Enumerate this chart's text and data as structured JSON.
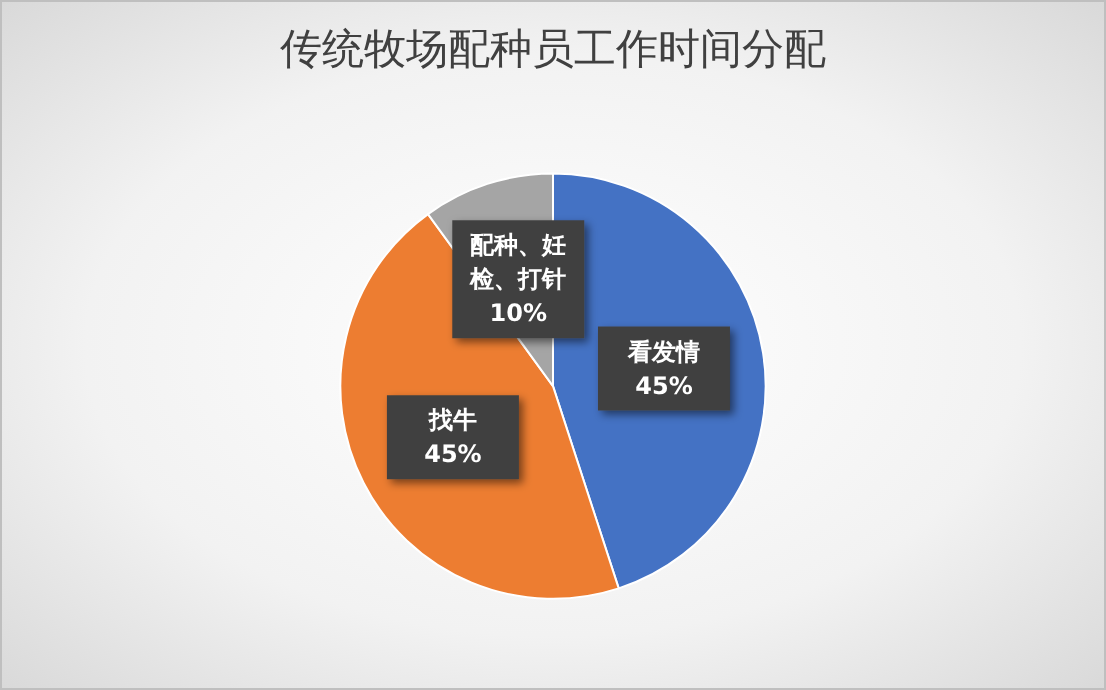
{
  "chart_data": {
    "type": "pie",
    "title": "传统牧场配种员工作时间分配",
    "categories": [
      "看发情",
      "找牛",
      "配种、妊检、打针"
    ],
    "values": [
      45,
      45,
      10
    ],
    "colors": [
      "#4472c4",
      "#ed7d31",
      "#a5a5a5"
    ],
    "value_labels": [
      "45%",
      "45%",
      "10%"
    ],
    "legend": false
  }
}
